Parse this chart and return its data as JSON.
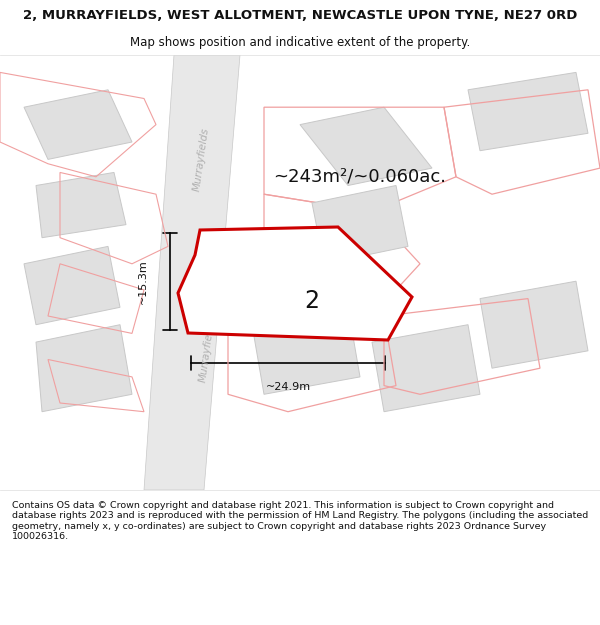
{
  "title": "2, MURRAYFIELDS, WEST ALLOTMENT, NEWCASTLE UPON TYNE, NE27 0RD",
  "subtitle": "Map shows position and indicative extent of the property.",
  "footer": "Contains OS data © Crown copyright and database right 2021. This information is subject to Crown copyright and database rights 2023 and is reproduced with the permission of HM Land Registry. The polygons (including the associated geometry, namely x, y co-ordinates) are subject to Crown copyright and database rights 2023 Ordnance Survey 100026316.",
  "area_text": "~243m²/~0.060ac.",
  "width_text": "~24.9m",
  "height_text": "~15.3m",
  "property_label": "2",
  "bg_color": "#ffffff",
  "road_label": "Murrayfields",
  "title_fontsize": 9.5,
  "subtitle_fontsize": 8.5,
  "footer_fontsize": 6.8,
  "map_bg": "#f8f8f8",
  "road_fill": "#e8e8e8",
  "road_edge": "#c8c8c8",
  "bld_fill": "#e0e0e0",
  "bld_edge": "#c8c8c8",
  "pink_edge": "#f0a0a0",
  "main_fill": "#ffffff",
  "main_edge": "#cc0000",
  "main_edge_width": 2.2,
  "context_edge_width": 0.7,
  "dim_color": "#111111",
  "label_color": "#111111",
  "road_label_color": "#b0b0b0"
}
